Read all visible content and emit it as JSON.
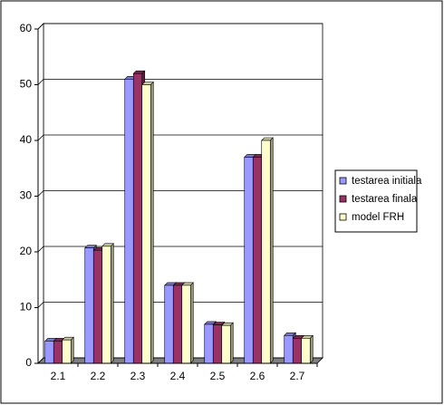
{
  "chart_data": {
    "type": "bar3d",
    "categories": [
      "2.1",
      "2.2",
      "2.3",
      "2.4",
      "2.5",
      "2.6",
      "2.7"
    ],
    "series": [
      {
        "name": "testarea initiala",
        "color": "#9999ff",
        "values": [
          4,
          20.7,
          51,
          14,
          7,
          37,
          5
        ]
      },
      {
        "name": "testarea finala",
        "color": "#993366",
        "values": [
          4,
          20.3,
          52,
          14,
          6.9,
          37,
          4.5
        ]
      },
      {
        "name": "model FRH",
        "color": "#ffffcc",
        "values": [
          4.2,
          21,
          50,
          14,
          6.8,
          40,
          4.5
        ]
      }
    ],
    "ylim": [
      0,
      60
    ],
    "yticks": [
      0,
      10,
      20,
      30,
      40,
      50,
      60
    ],
    "grid": true,
    "legend": "right"
  }
}
